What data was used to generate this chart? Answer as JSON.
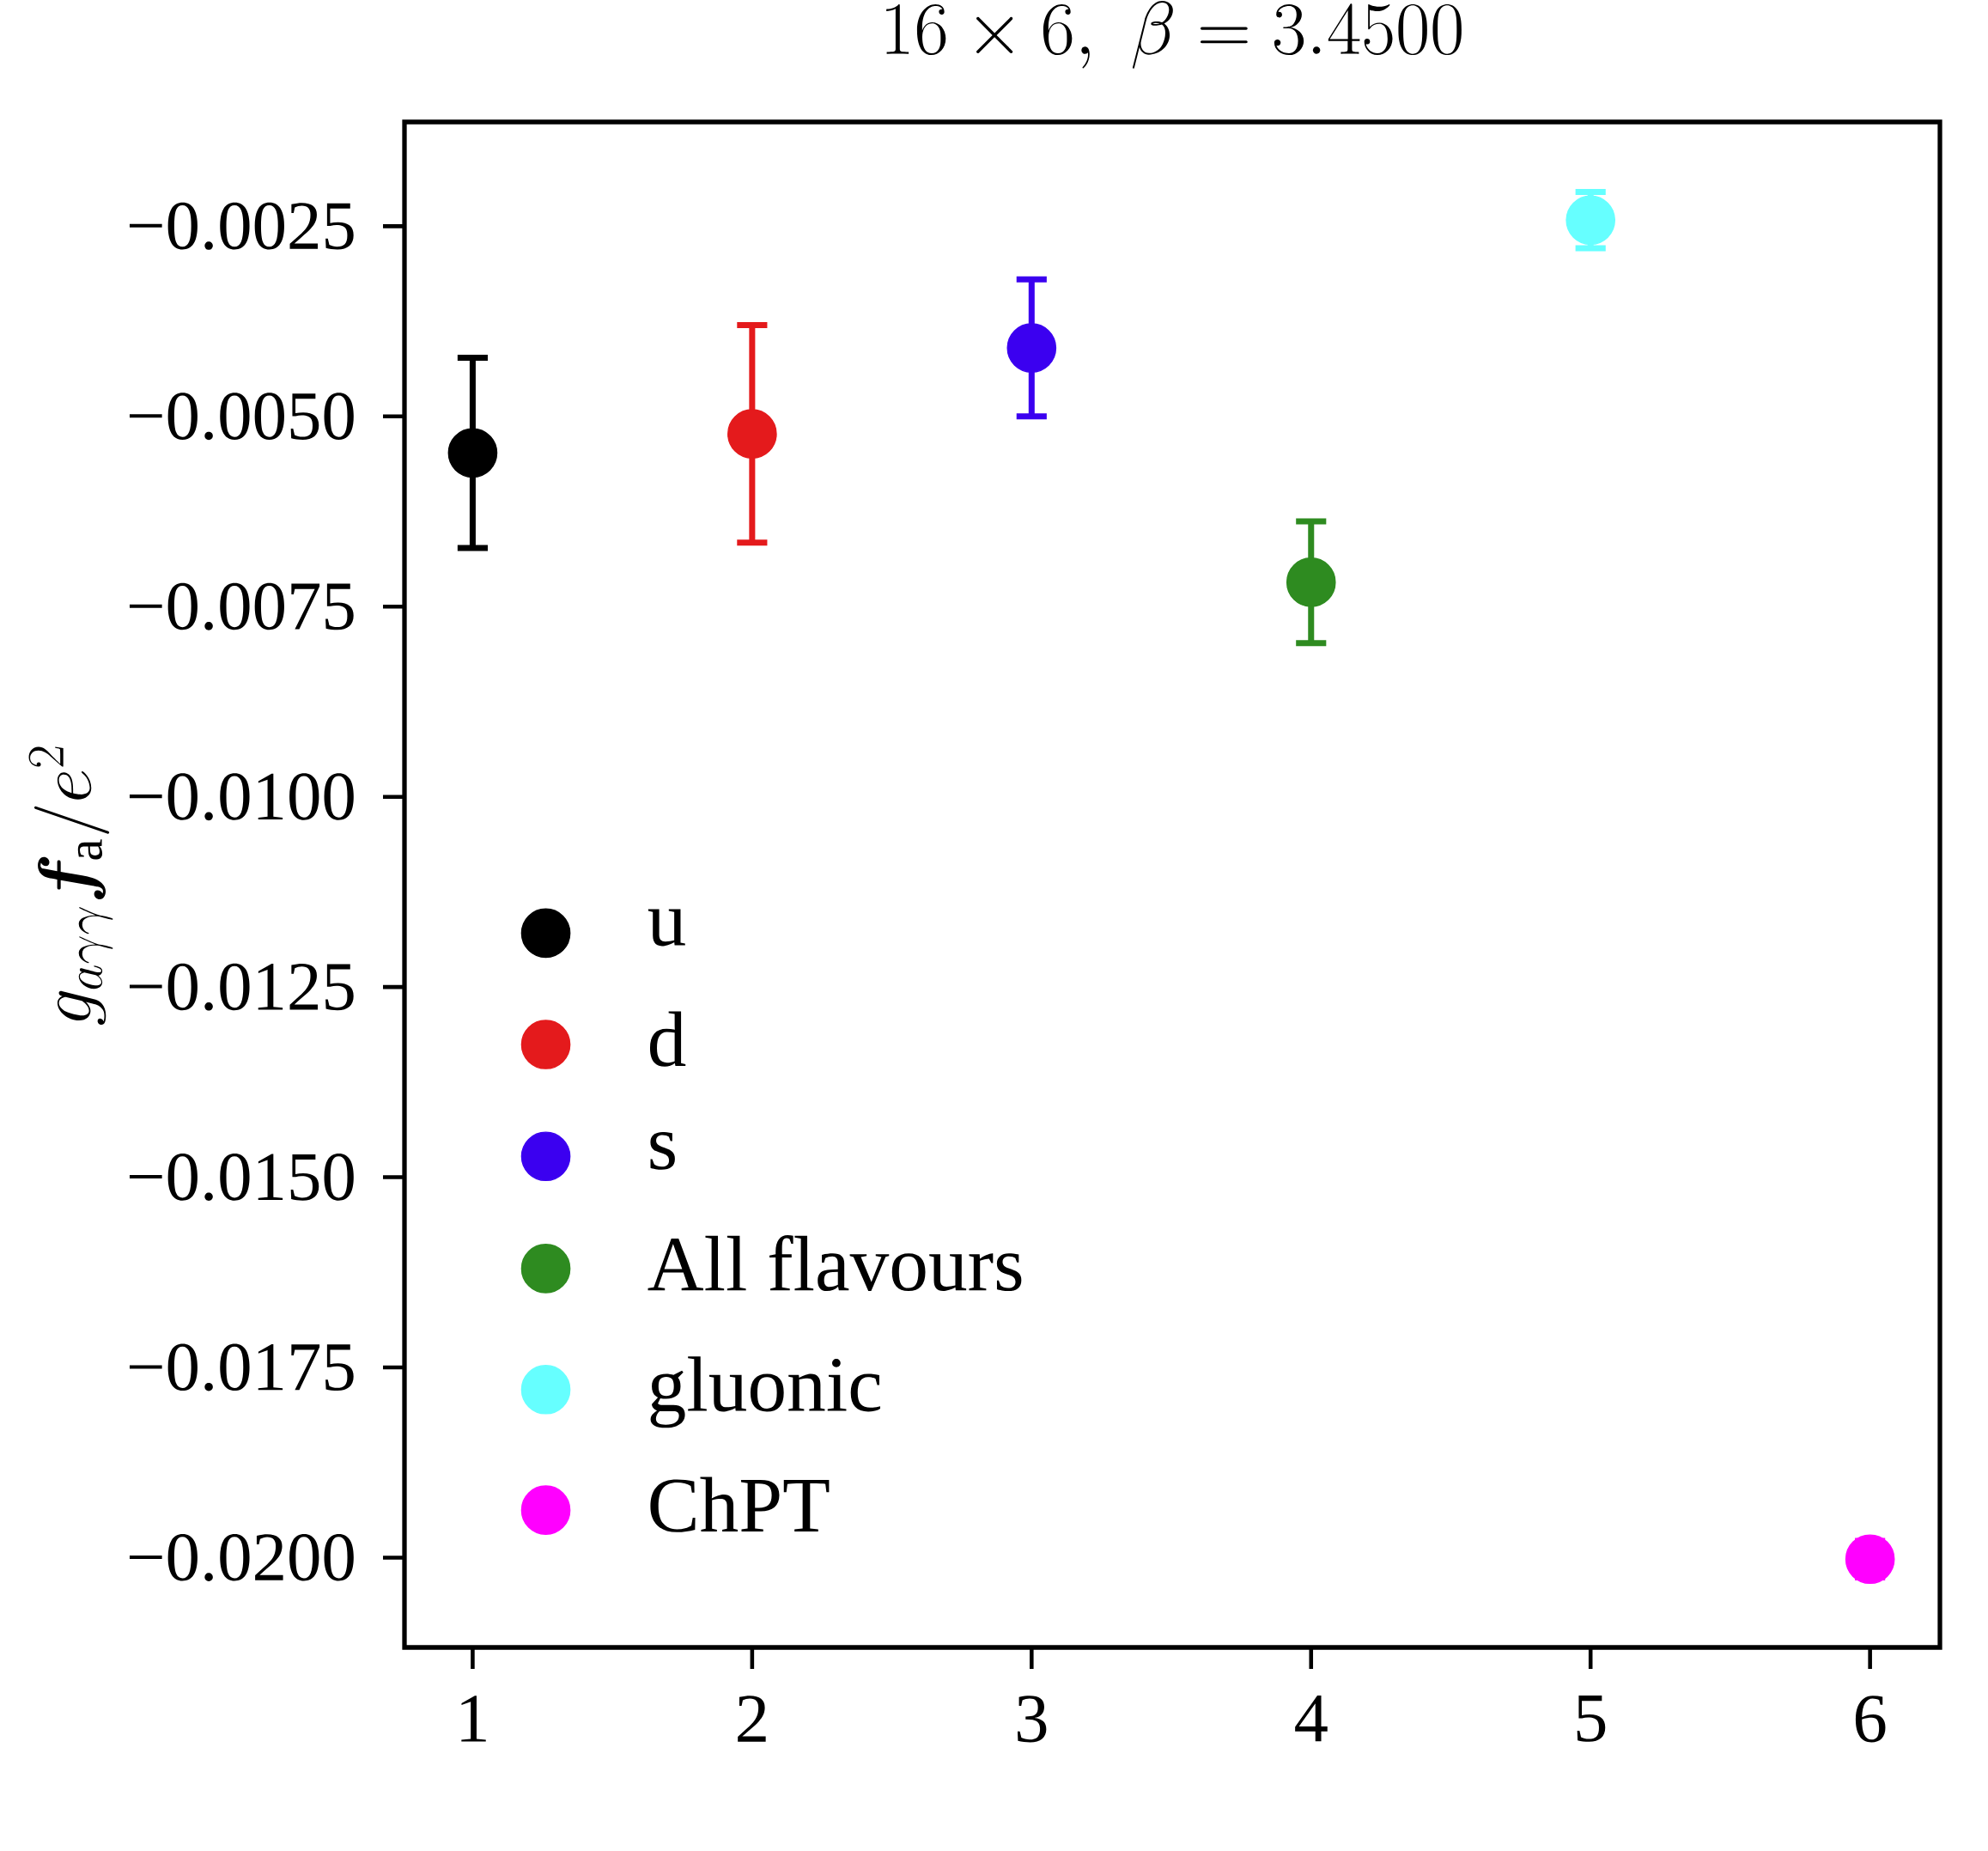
{
  "chart_data": {
    "type": "scatter",
    "title": "16\\times 6,\\ \\beta = 3.4500",
    "ylabel": "g_{a\\gamma\\gamma}\\boldsymbol{f}_{\\mathrm{a}}/e^{2}",
    "xlim": [
      0.756,
      6.25
    ],
    "ylim": [
      -0.02118,
      -0.00113
    ],
    "xticks": [
      1,
      2,
      3,
      4,
      5,
      6
    ],
    "yticks": [
      {
        "value": -0.0025,
        "label": "−0.0025"
      },
      {
        "value": -0.005,
        "label": "−0.0050"
      },
      {
        "value": -0.0075,
        "label": "−0.0075"
      },
      {
        "value": -0.01,
        "label": "−0.0100"
      },
      {
        "value": -0.0125,
        "label": "−0.0125"
      },
      {
        "value": -0.015,
        "label": "−0.0150"
      },
      {
        "value": -0.0175,
        "label": "−0.0175"
      },
      {
        "value": -0.02,
        "label": "−0.0200"
      }
    ],
    "marker": "circle",
    "legend": "bottom left",
    "series": [
      {
        "name": "u",
        "color": "#000000",
        "x": [
          1
        ],
        "values": [
          -0.00548
        ],
        "errors": [
          0.00125
        ]
      },
      {
        "name": "d",
        "color": "#e41a1c",
        "x": [
          2
        ],
        "values": [
          -0.00523
        ],
        "errors": [
          0.00143
        ]
      },
      {
        "name": "s",
        "color": "#3b00f0",
        "x": [
          3
        ],
        "values": [
          -0.0041
        ],
        "errors": [
          0.0009
        ]
      },
      {
        "name": "All flavours",
        "color": "#2e8b20",
        "x": [
          4
        ],
        "values": [
          -0.00718
        ],
        "errors": [
          0.0008
        ]
      },
      {
        "name": "gluonic",
        "color": "#66ffff",
        "x": [
          5
        ],
        "values": [
          -0.00242
        ],
        "errors": [
          0.00037
        ]
      },
      {
        "name": "ChPT",
        "color": "#ff00ff",
        "x": [
          6
        ],
        "values": [
          -0.02002
        ],
        "errors": [
          0.00024
        ]
      }
    ]
  }
}
